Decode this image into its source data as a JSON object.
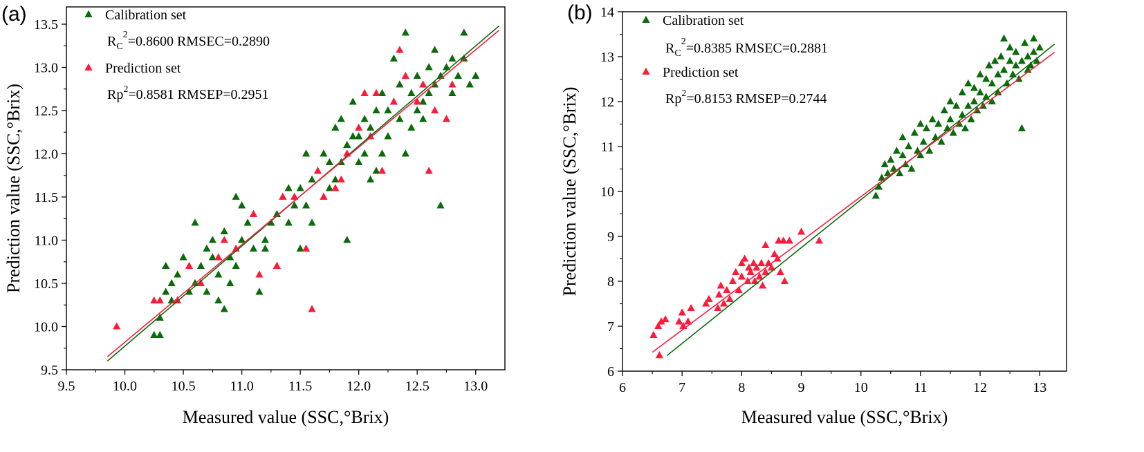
{
  "chart_data": [
    {
      "panel_label": "(a)",
      "type": "scatter",
      "xlabel": "Measured value  (SSC,°Brix)",
      "ylabel": "Prediction value (SSC,°Brix)",
      "xlim": [
        9.5,
        13.25
      ],
      "ylim": [
        9.5,
        13.7
      ],
      "xticks": [
        "9.5",
        "10.0",
        "10.5",
        "11.0",
        "11.5",
        "12.0",
        "12.5",
        "13.0"
      ],
      "yticks": [
        "9.5",
        "10.0",
        "10.5",
        "11.0",
        "11.5",
        "12.0",
        "12.5",
        "13.0",
        "13.5"
      ],
      "calibration": {
        "legend": "Calibration set",
        "stat_r_prefix": "R",
        "stat_r_sub": "C",
        "stat_r_sup": "2",
        "stat_rest": "=0.8600  RMSEC=0.2890",
        "color": "#0b6b0b",
        "fit": [
          [
            9.85,
            9.6
          ],
          [
            13.2,
            13.48
          ]
        ],
        "points": [
          [
            10.25,
            9.9
          ],
          [
            10.3,
            10.1
          ],
          [
            10.3,
            9.9
          ],
          [
            10.35,
            10.4
          ],
          [
            10.35,
            10.7
          ],
          [
            10.4,
            10.5
          ],
          [
            10.4,
            10.3
          ],
          [
            10.45,
            10.6
          ],
          [
            10.5,
            10.8
          ],
          [
            10.55,
            10.4
          ],
          [
            10.6,
            10.5
          ],
          [
            10.6,
            11.2
          ],
          [
            10.65,
            10.7
          ],
          [
            10.7,
            10.9
          ],
          [
            10.7,
            10.4
          ],
          [
            10.75,
            10.8
          ],
          [
            10.75,
            11.0
          ],
          [
            10.8,
            10.6
          ],
          [
            10.8,
            10.3
          ],
          [
            10.85,
            10.2
          ],
          [
            10.85,
            11.1
          ],
          [
            10.9,
            10.8
          ],
          [
            10.9,
            10.5
          ],
          [
            10.95,
            11.5
          ],
          [
            10.95,
            10.7
          ],
          [
            11.0,
            11.0
          ],
          [
            11.0,
            11.4
          ],
          [
            11.05,
            11.2
          ],
          [
            11.1,
            10.9
          ],
          [
            11.1,
            11.3
          ],
          [
            11.15,
            10.4
          ],
          [
            11.2,
            10.9
          ],
          [
            11.2,
            11.0
          ],
          [
            11.25,
            11.2
          ],
          [
            11.3,
            11.3
          ],
          [
            11.3,
            10.7
          ],
          [
            11.35,
            11.5
          ],
          [
            11.4,
            11.2
          ],
          [
            11.4,
            11.6
          ],
          [
            11.45,
            11.4
          ],
          [
            11.5,
            11.6
          ],
          [
            11.5,
            10.9
          ],
          [
            11.55,
            12.0
          ],
          [
            11.55,
            11.4
          ],
          [
            11.6,
            11.7
          ],
          [
            11.6,
            11.2
          ],
          [
            11.65,
            11.8
          ],
          [
            11.7,
            11.5
          ],
          [
            11.7,
            12.0
          ],
          [
            11.75,
            11.9
          ],
          [
            11.75,
            11.6
          ],
          [
            11.8,
            12.3
          ],
          [
            11.8,
            11.7
          ],
          [
            11.85,
            12.4
          ],
          [
            11.85,
            11.9
          ],
          [
            11.9,
            12.1
          ],
          [
            11.9,
            11.0
          ],
          [
            11.95,
            12.6
          ],
          [
            11.95,
            12.2
          ],
          [
            12.0,
            12.2
          ],
          [
            12.0,
            11.9
          ],
          [
            12.05,
            12.0
          ],
          [
            12.05,
            12.4
          ],
          [
            12.1,
            12.3
          ],
          [
            12.1,
            11.7
          ],
          [
            12.15,
            12.5
          ],
          [
            12.15,
            11.8
          ],
          [
            12.2,
            12.7
          ],
          [
            12.2,
            12.0
          ],
          [
            12.25,
            12.2
          ],
          [
            12.25,
            12.5
          ],
          [
            12.3,
            12.6
          ],
          [
            12.3,
            13.1
          ],
          [
            12.35,
            12.4
          ],
          [
            12.35,
            12.8
          ],
          [
            12.4,
            12.0
          ],
          [
            12.4,
            13.4
          ],
          [
            12.45,
            12.7
          ],
          [
            12.45,
            12.3
          ],
          [
            12.5,
            12.9
          ],
          [
            12.5,
            12.5
          ],
          [
            12.55,
            12.6
          ],
          [
            12.55,
            12.4
          ],
          [
            12.6,
            13.0
          ],
          [
            12.6,
            12.7
          ],
          [
            12.65,
            13.2
          ],
          [
            12.65,
            12.8
          ],
          [
            12.7,
            11.4
          ],
          [
            12.7,
            12.9
          ],
          [
            12.75,
            13.0
          ],
          [
            12.75,
            12.4
          ],
          [
            12.8,
            13.1
          ],
          [
            12.8,
            12.7
          ],
          [
            12.85,
            12.9
          ],
          [
            12.9,
            13.4
          ],
          [
            12.9,
            13.1
          ],
          [
            12.95,
            12.8
          ],
          [
            13.0,
            12.9
          ]
        ]
      },
      "prediction": {
        "legend": "Prediction set",
        "stat_r_prefix": "Rp",
        "stat_r_sub": "",
        "stat_r_sup": "2",
        "stat_rest": "=0.8581  RMSEP=0.2951",
        "color": "#ff1a3c",
        "fit": [
          [
            9.85,
            9.65
          ],
          [
            13.2,
            13.43
          ]
        ],
        "points": [
          [
            9.93,
            10.0
          ],
          [
            10.25,
            10.3
          ],
          [
            10.3,
            10.3
          ],
          [
            10.45,
            10.3
          ],
          [
            10.55,
            10.7
          ],
          [
            10.65,
            10.5
          ],
          [
            10.8,
            10.8
          ],
          [
            10.85,
            11.0
          ],
          [
            10.95,
            10.9
          ],
          [
            11.1,
            11.3
          ],
          [
            11.15,
            10.6
          ],
          [
            11.3,
            10.7
          ],
          [
            11.35,
            11.5
          ],
          [
            11.45,
            11.5
          ],
          [
            11.55,
            10.9
          ],
          [
            11.6,
            10.2
          ],
          [
            11.65,
            11.8
          ],
          [
            11.7,
            11.5
          ],
          [
            11.8,
            11.6
          ],
          [
            11.85,
            11.7
          ],
          [
            11.9,
            12.0
          ],
          [
            12.0,
            12.3
          ],
          [
            12.05,
            12.7
          ],
          [
            12.1,
            12.2
          ],
          [
            12.15,
            12.7
          ],
          [
            12.2,
            11.8
          ],
          [
            12.3,
            12.6
          ],
          [
            12.35,
            13.2
          ],
          [
            12.4,
            12.9
          ],
          [
            12.5,
            12.6
          ],
          [
            12.55,
            12.8
          ],
          [
            12.6,
            11.8
          ],
          [
            12.65,
            12.5
          ],
          [
            12.75,
            12.4
          ],
          [
            12.8,
            12.8
          ]
        ]
      }
    },
    {
      "panel_label": "(b)",
      "type": "scatter",
      "xlabel": "Measured value  (SSC,°Brix)",
      "ylabel": "Prediction value (SSC,°Brix)",
      "xlim": [
        6,
        13.45
      ],
      "ylim": [
        6,
        14
      ],
      "xticks": [
        "6",
        "7",
        "8",
        "9",
        "10",
        "11",
        "12",
        "13"
      ],
      "yticks": [
        "6",
        "7",
        "8",
        "9",
        "10",
        "11",
        "12",
        "13",
        "14"
      ],
      "calibration": {
        "legend": "Calibration set",
        "stat_r_prefix": "R",
        "stat_r_sub": "C",
        "stat_r_sup": "2",
        "stat_rest": "=0.8385  RMSEC=0.2881",
        "color": "#0b6b0b",
        "fit": [
          [
            6.75,
            6.35
          ],
          [
            13.25,
            13.28
          ]
        ],
        "points": [
          [
            10.25,
            9.9
          ],
          [
            10.3,
            10.1
          ],
          [
            10.35,
            10.3
          ],
          [
            10.4,
            10.6
          ],
          [
            10.45,
            10.4
          ],
          [
            10.5,
            10.7
          ],
          [
            10.55,
            10.5
          ],
          [
            10.6,
            10.9
          ],
          [
            10.65,
            10.4
          ],
          [
            10.7,
            11.2
          ],
          [
            10.7,
            10.8
          ],
          [
            10.75,
            10.6
          ],
          [
            10.8,
            11.0
          ],
          [
            10.85,
            10.5
          ],
          [
            10.9,
            11.3
          ],
          [
            10.95,
            10.9
          ],
          [
            11.0,
            11.5
          ],
          [
            11.0,
            10.8
          ],
          [
            11.05,
            11.1
          ],
          [
            11.1,
            11.4
          ],
          [
            11.15,
            10.9
          ],
          [
            11.2,
            11.6
          ],
          [
            11.25,
            11.2
          ],
          [
            11.3,
            11.5
          ],
          [
            11.35,
            11.1
          ],
          [
            11.4,
            11.8
          ],
          [
            11.45,
            11.4
          ],
          [
            11.5,
            11.6
          ],
          [
            11.5,
            12.0
          ],
          [
            11.55,
            11.3
          ],
          [
            11.6,
            11.9
          ],
          [
            11.65,
            11.5
          ],
          [
            11.7,
            12.2
          ],
          [
            11.7,
            11.7
          ],
          [
            11.75,
            11.4
          ],
          [
            11.8,
            12.4
          ],
          [
            11.8,
            11.9
          ],
          [
            11.85,
            11.6
          ],
          [
            11.9,
            12.3
          ],
          [
            11.9,
            12.0
          ],
          [
            11.95,
            11.8
          ],
          [
            12.0,
            12.6
          ],
          [
            12.0,
            12.2
          ],
          [
            12.05,
            11.9
          ],
          [
            12.1,
            12.5
          ],
          [
            12.1,
            12.1
          ],
          [
            12.15,
            12.8
          ],
          [
            12.2,
            12.4
          ],
          [
            12.2,
            12.0
          ],
          [
            12.25,
            12.9
          ],
          [
            12.3,
            12.6
          ],
          [
            12.3,
            12.2
          ],
          [
            12.35,
            13.0
          ],
          [
            12.4,
            12.7
          ],
          [
            12.4,
            13.4
          ],
          [
            12.45,
            12.4
          ],
          [
            12.5,
            12.9
          ],
          [
            12.5,
            13.2
          ],
          [
            12.55,
            12.6
          ],
          [
            12.6,
            12.8
          ],
          [
            12.6,
            13.1
          ],
          [
            12.65,
            12.5
          ],
          [
            12.7,
            11.4
          ],
          [
            12.7,
            12.9
          ],
          [
            12.75,
            13.3
          ],
          [
            12.8,
            12.7
          ],
          [
            12.8,
            13.0
          ],
          [
            12.85,
            12.8
          ],
          [
            12.9,
            13.4
          ],
          [
            12.9,
            13.1
          ],
          [
            12.95,
            12.9
          ],
          [
            13.0,
            13.2
          ]
        ]
      },
      "prediction": {
        "legend": "Prediction set",
        "stat_r_prefix": "Rp",
        "stat_r_sub": "",
        "stat_r_sup": "2",
        "stat_rest": "=0.8153  RMSEP=0.2744",
        "color": "#ff1a3c",
        "fit": [
          [
            6.5,
            6.42
          ],
          [
            13.25,
            13.1
          ]
        ],
        "points": [
          [
            6.52,
            6.8
          ],
          [
            6.6,
            7.0
          ],
          [
            6.62,
            6.35
          ],
          [
            6.65,
            7.1
          ],
          [
            6.72,
            7.15
          ],
          [
            6.95,
            7.1
          ],
          [
            7.0,
            7.3
          ],
          [
            7.02,
            7.0
          ],
          [
            7.1,
            7.1
          ],
          [
            7.15,
            7.4
          ],
          [
            7.4,
            7.5
          ],
          [
            7.45,
            7.6
          ],
          [
            7.6,
            7.4
          ],
          [
            7.62,
            7.7
          ],
          [
            7.65,
            7.9
          ],
          [
            7.7,
            7.5
          ],
          [
            7.75,
            7.8
          ],
          [
            7.8,
            7.6
          ],
          [
            7.85,
            8.0
          ],
          [
            7.9,
            8.2
          ],
          [
            7.95,
            7.8
          ],
          [
            8.0,
            8.1
          ],
          [
            8.0,
            8.4
          ],
          [
            8.05,
            8.5
          ],
          [
            8.1,
            8.0
          ],
          [
            8.12,
            8.3
          ],
          [
            8.15,
            8.2
          ],
          [
            8.2,
            8.4
          ],
          [
            8.22,
            8.0
          ],
          [
            8.25,
            8.3
          ],
          [
            8.3,
            8.1
          ],
          [
            8.33,
            8.4
          ],
          [
            8.35,
            7.9
          ],
          [
            8.4,
            8.2
          ],
          [
            8.4,
            8.8
          ],
          [
            8.45,
            8.4
          ],
          [
            8.5,
            8.3
          ],
          [
            8.55,
            8.6
          ],
          [
            8.6,
            8.5
          ],
          [
            8.62,
            8.9
          ],
          [
            8.65,
            8.2
          ],
          [
            8.7,
            8.9
          ],
          [
            8.72,
            8.0
          ],
          [
            8.8,
            8.9
          ],
          [
            9.0,
            9.1
          ],
          [
            9.3,
            8.9
          ]
        ]
      }
    }
  ]
}
